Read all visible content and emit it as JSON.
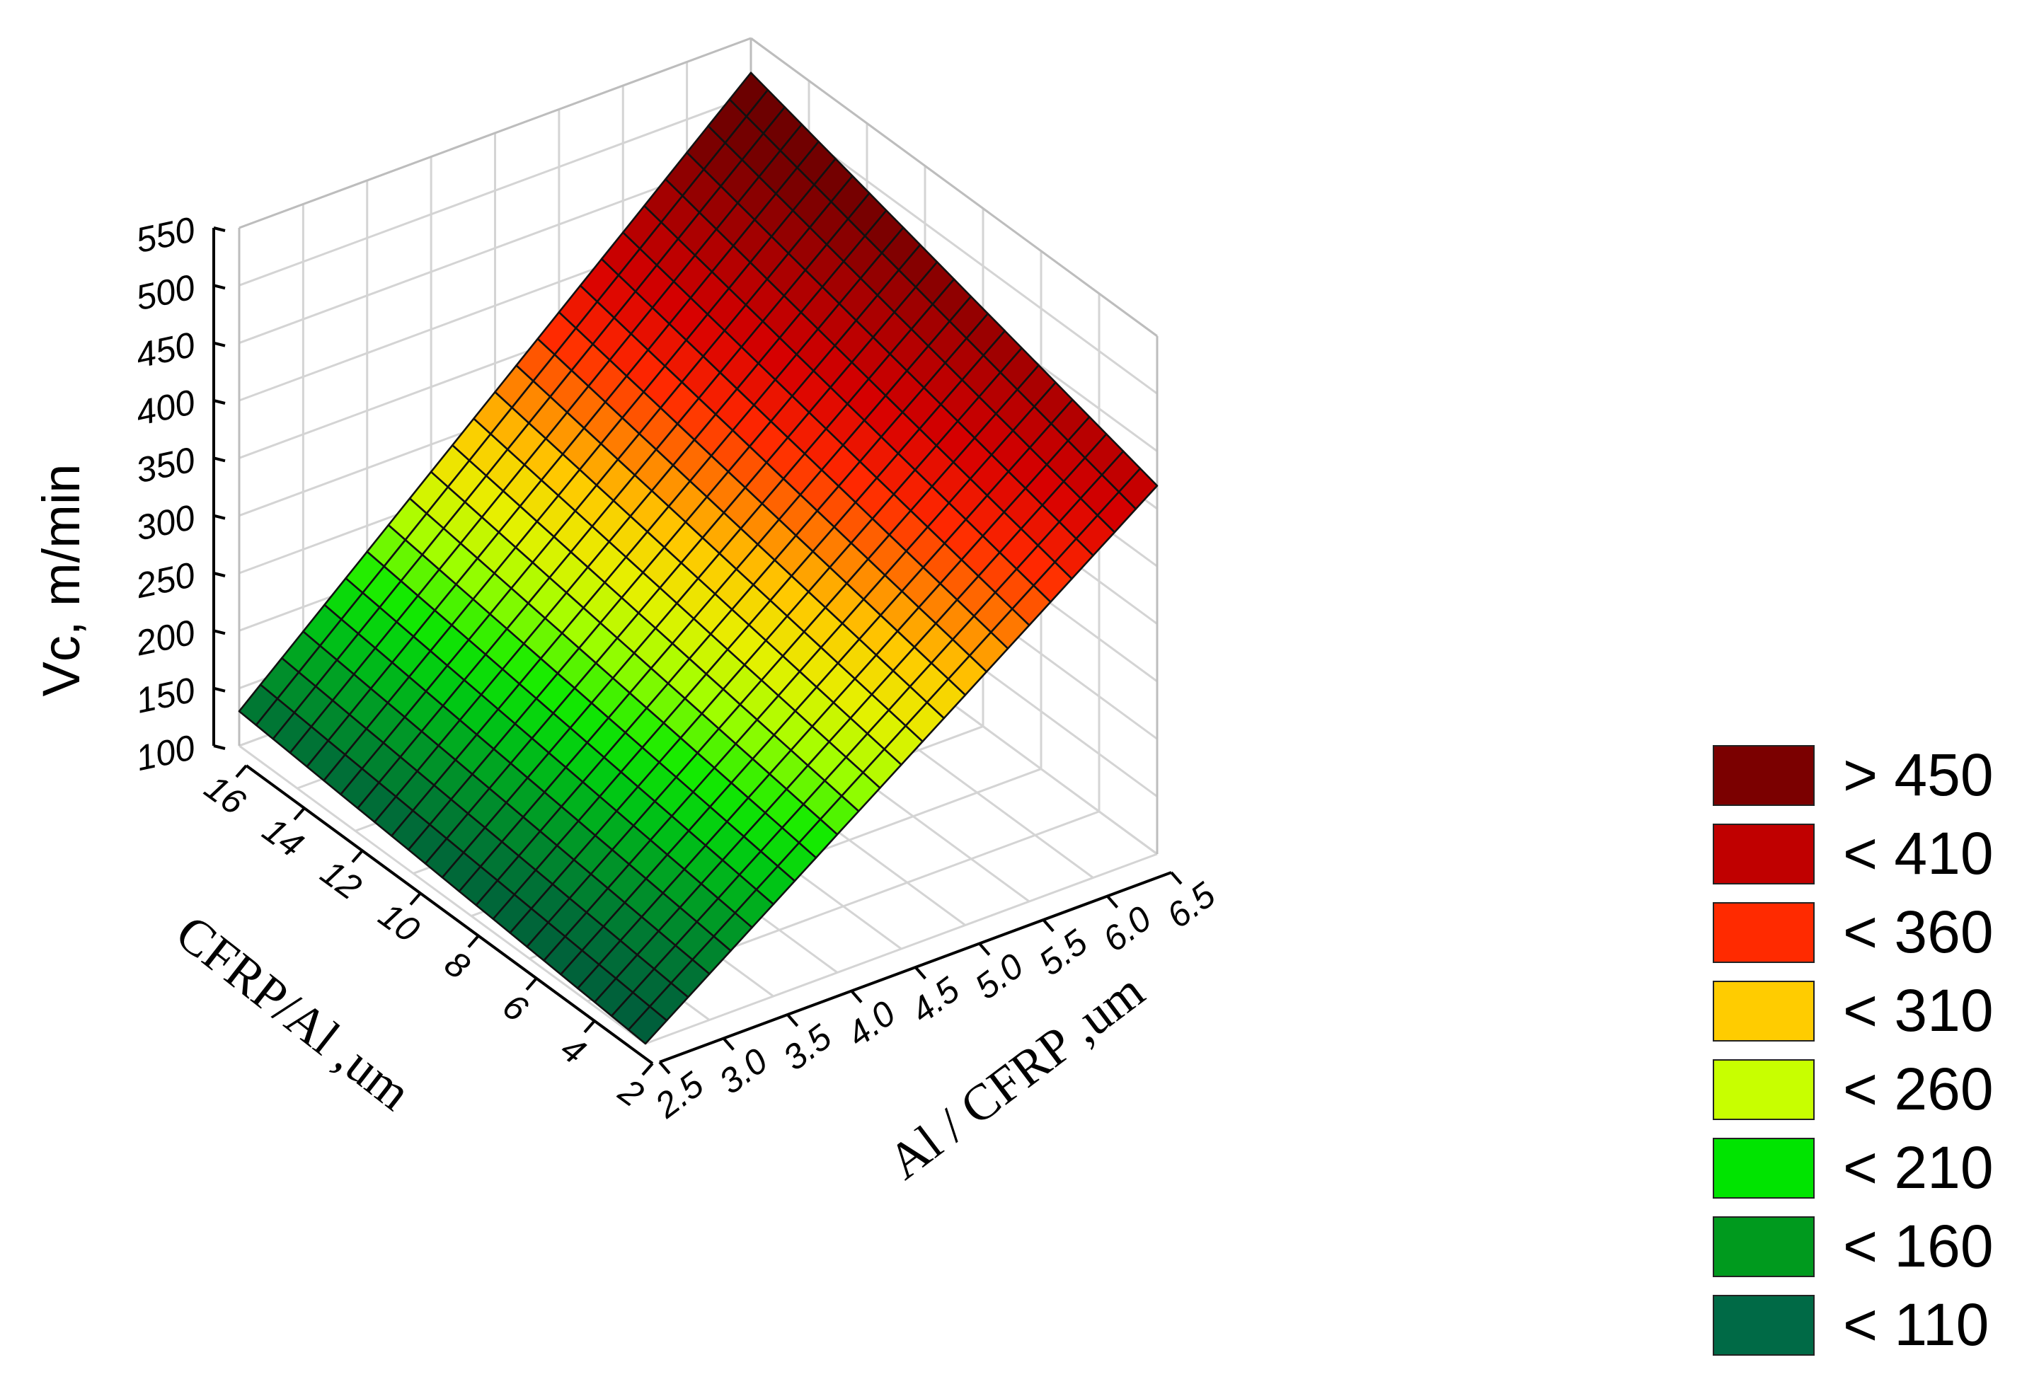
{
  "chart_data": {
    "type": "surface3d",
    "title": "",
    "z_label": "Vc, m/min",
    "x_label": "CFRP/Al ,um",
    "y_label": "Al / CFRP ,um",
    "z_ticks": [
      "100",
      "150",
      "200",
      "250",
      "300",
      "350",
      "400",
      "450",
      "500",
      "550"
    ],
    "z_range": [
      100,
      550
    ],
    "x_ticks": [
      "2",
      "4",
      "6",
      "8",
      "10",
      "12",
      "14",
      "16"
    ],
    "x_range": [
      2,
      16
    ],
    "y_ticks": [
      "2.5",
      "3.0",
      "3.5",
      "4.0",
      "4.5",
      "5.0",
      "5.5",
      "6.0",
      "6.5"
    ],
    "y_range": [
      2.5,
      6.5
    ],
    "surface_corners": [
      {
        "x": 16,
        "y": 2.5,
        "z": 130
      },
      {
        "x": 2,
        "y": 2.5,
        "z": 100
      },
      {
        "x": 16,
        "y": 6.5,
        "z": 520
      },
      {
        "x": 2,
        "y": 6.5,
        "z": 420
      }
    ],
    "grid_divisions": 24,
    "grid": true,
    "legend_position": "bottom-right",
    "legend": [
      {
        "label": "> 450",
        "color": "#7b0000"
      },
      {
        "label": "< 410",
        "color": "#c00000"
      },
      {
        "label": "< 360",
        "color": "#ff2a00"
      },
      {
        "label": "< 310",
        "color": "#ffcc00"
      },
      {
        "label": "< 260",
        "color": "#c8ff00"
      },
      {
        "label": "< 210",
        "color": "#00e400"
      },
      {
        "label": "< 160",
        "color": "#009a1e"
      },
      {
        "label": "< 110",
        "color": "#006a46"
      }
    ]
  }
}
